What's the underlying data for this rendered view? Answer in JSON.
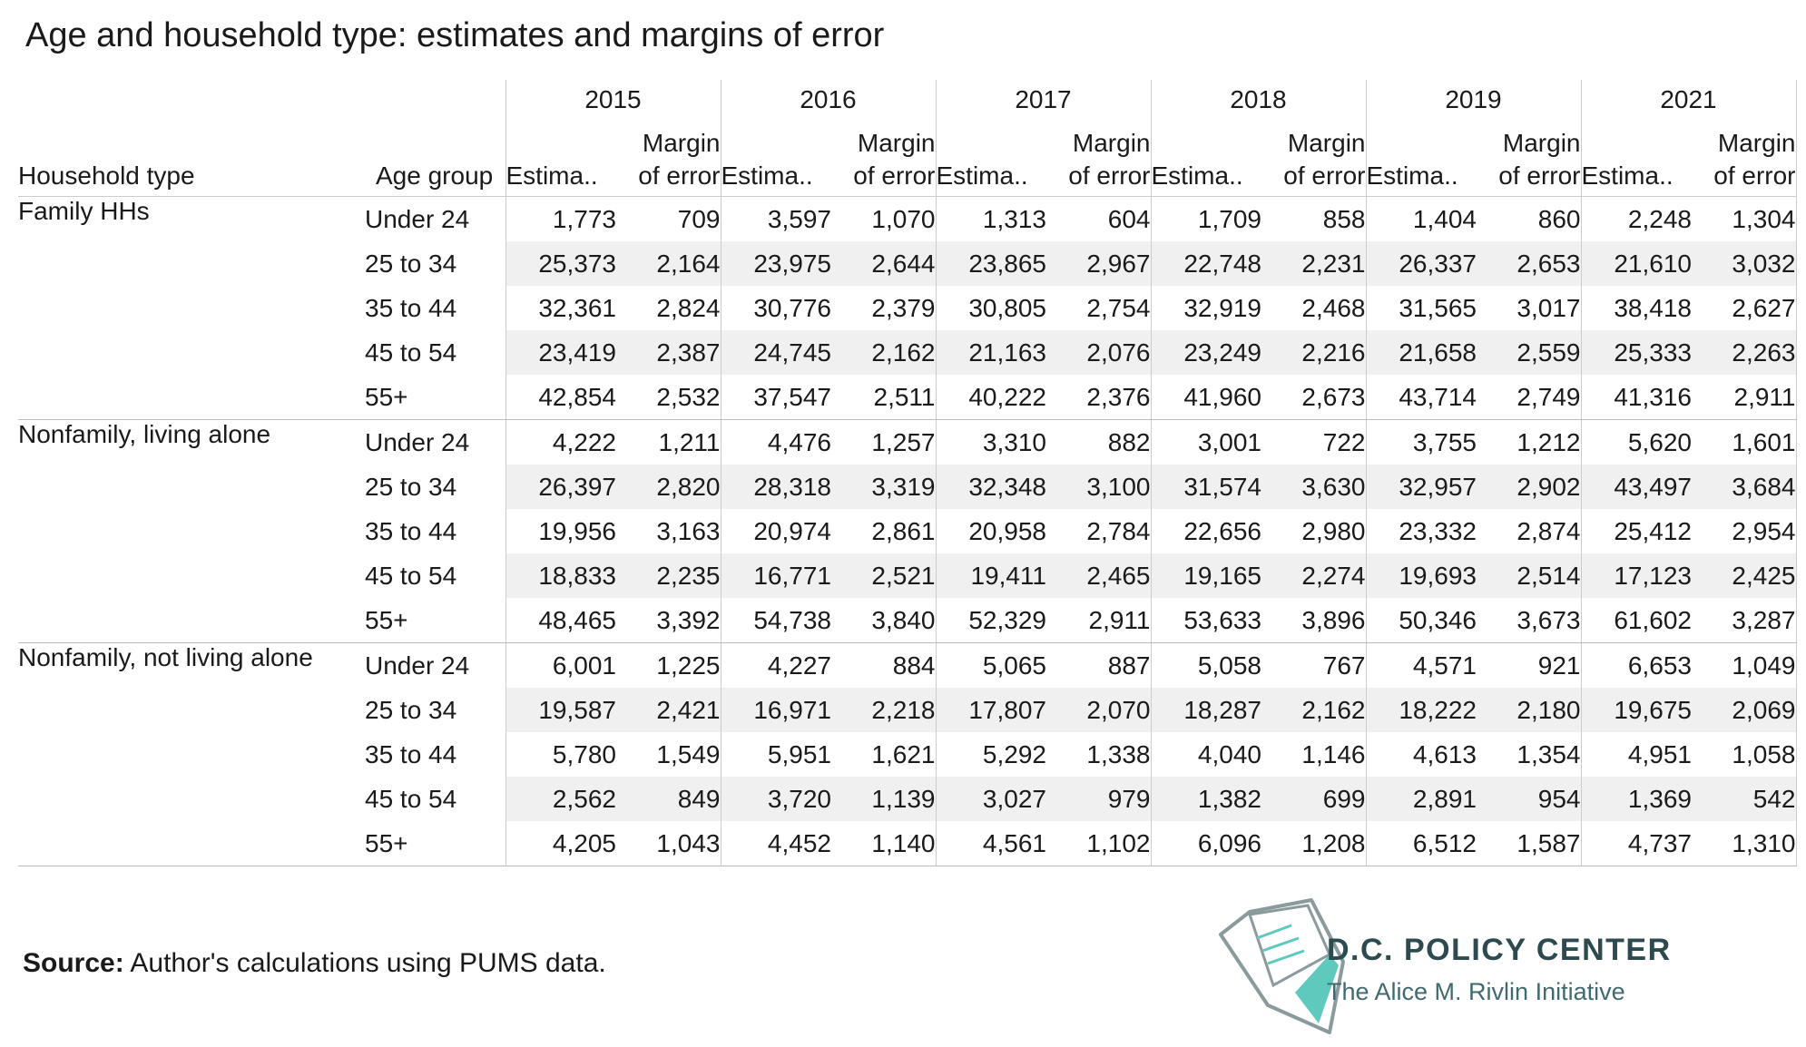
{
  "title": "Age and household type: estimates and margins of error",
  "chart_data": {
    "type": "table",
    "title": "Age and household type: estimates and margins of error",
    "row_headers": [
      "Household type",
      "Age group"
    ],
    "years": [
      "2015",
      "2016",
      "2017",
      "2018",
      "2019",
      "2021"
    ],
    "subheaders": [
      "Estima..",
      "Margin\nof error"
    ],
    "groups": [
      {
        "type": "Family HHs",
        "rows": [
          {
            "age": "Under 24",
            "values": [
              "1,773",
              "709",
              "3,597",
              "1,070",
              "1,313",
              "604",
              "1,709",
              "858",
              "1,404",
              "860",
              "2,248",
              "1,304"
            ]
          },
          {
            "age": "25 to 34",
            "values": [
              "25,373",
              "2,164",
              "23,975",
              "2,644",
              "23,865",
              "2,967",
              "22,748",
              "2,231",
              "26,337",
              "2,653",
              "21,610",
              "3,032"
            ]
          },
          {
            "age": "35 to 44",
            "values": [
              "32,361",
              "2,824",
              "30,776",
              "2,379",
              "30,805",
              "2,754",
              "32,919",
              "2,468",
              "31,565",
              "3,017",
              "38,418",
              "2,627"
            ]
          },
          {
            "age": "45 to 54",
            "values": [
              "23,419",
              "2,387",
              "24,745",
              "2,162",
              "21,163",
              "2,076",
              "23,249",
              "2,216",
              "21,658",
              "2,559",
              "25,333",
              "2,263"
            ]
          },
          {
            "age": "55+",
            "values": [
              "42,854",
              "2,532",
              "37,547",
              "2,511",
              "40,222",
              "2,376",
              "41,960",
              "2,673",
              "43,714",
              "2,749",
              "41,316",
              "2,911"
            ]
          }
        ]
      },
      {
        "type": "Nonfamily, living alone",
        "rows": [
          {
            "age": "Under 24",
            "values": [
              "4,222",
              "1,211",
              "4,476",
              "1,257",
              "3,310",
              "882",
              "3,001",
              "722",
              "3,755",
              "1,212",
              "5,620",
              "1,601"
            ]
          },
          {
            "age": "25 to 34",
            "values": [
              "26,397",
              "2,820",
              "28,318",
              "3,319",
              "32,348",
              "3,100",
              "31,574",
              "3,630",
              "32,957",
              "2,902",
              "43,497",
              "3,684"
            ]
          },
          {
            "age": "35 to 44",
            "values": [
              "19,956",
              "3,163",
              "20,974",
              "2,861",
              "20,958",
              "2,784",
              "22,656",
              "2,980",
              "23,332",
              "2,874",
              "25,412",
              "2,954"
            ]
          },
          {
            "age": "45 to 54",
            "values": [
              "18,833",
              "2,235",
              "16,771",
              "2,521",
              "19,411",
              "2,465",
              "19,165",
              "2,274",
              "19,693",
              "2,514",
              "17,123",
              "2,425"
            ]
          },
          {
            "age": "55+",
            "values": [
              "48,465",
              "3,392",
              "54,738",
              "3,840",
              "52,329",
              "2,911",
              "53,633",
              "3,896",
              "50,346",
              "3,673",
              "61,602",
              "3,287"
            ]
          }
        ]
      },
      {
        "type": "Nonfamily, not living alone",
        "rows": [
          {
            "age": "Under 24",
            "values": [
              "6,001",
              "1,225",
              "4,227",
              "884",
              "5,065",
              "887",
              "5,058",
              "767",
              "4,571",
              "921",
              "6,653",
              "1,049"
            ]
          },
          {
            "age": "25 to 34",
            "values": [
              "19,587",
              "2,421",
              "16,971",
              "2,218",
              "17,807",
              "2,070",
              "18,287",
              "2,162",
              "18,222",
              "2,180",
              "19,675",
              "2,069"
            ]
          },
          {
            "age": "35 to 44",
            "values": [
              "5,780",
              "1,549",
              "5,951",
              "1,621",
              "5,292",
              "1,338",
              "4,040",
              "1,146",
              "4,613",
              "1,354",
              "4,951",
              "1,058"
            ]
          },
          {
            "age": "45 to 54",
            "values": [
              "2,562",
              "849",
              "3,720",
              "1,139",
              "3,027",
              "979",
              "1,382",
              "699",
              "2,891",
              "954",
              "1,369",
              "542"
            ]
          },
          {
            "age": "55+",
            "values": [
              "4,205",
              "1,043",
              "4,452",
              "1,140",
              "4,561",
              "1,102",
              "6,096",
              "1,208",
              "6,512",
              "1,587",
              "4,737",
              "1,310"
            ]
          }
        ]
      }
    ]
  },
  "footer": {
    "source_label": "Source:",
    "source_text": " Author's calculations using PUMS data."
  },
  "logo": {
    "name": "D.C. POLICY CENTER",
    "tagline": "The Alice M. Rivlin Initiative",
    "colors": {
      "text": "#2c4a4f",
      "accent": "#5fc9bd",
      "outline": "#8a9a9d"
    }
  }
}
